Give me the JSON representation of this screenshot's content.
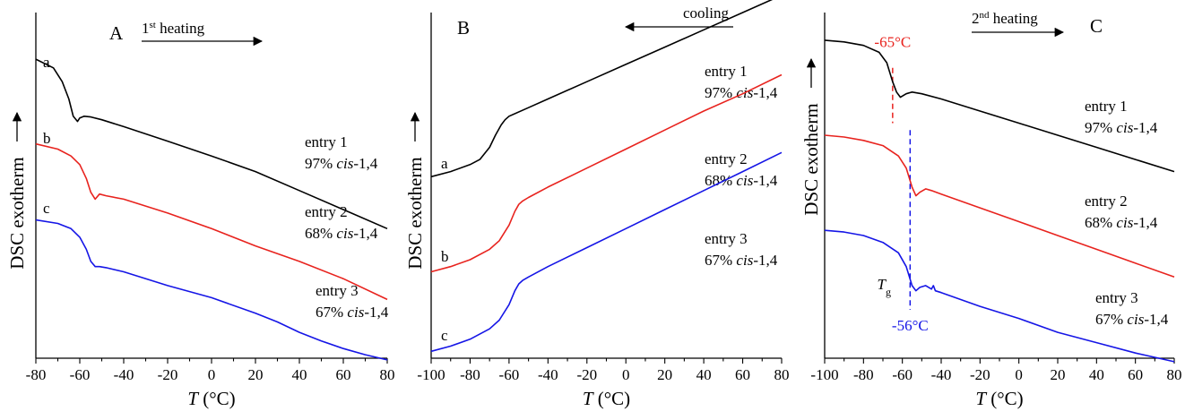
{
  "colors": {
    "entry1": "#000000",
    "entry2": "#e8231e",
    "entry3": "#1515e6",
    "tg_marker_red": "#e8231e",
    "tg_marker_blue": "#1515e6"
  },
  "ylabel": "DSC exotherm",
  "xlabel": {
    "var": "T",
    "unit": " (°C)"
  },
  "chart_data": [
    {
      "type": "line",
      "panel": "A",
      "annotation": {
        "prefix": "1",
        "sup": "st",
        "suffix": " heating",
        "direction": "right"
      },
      "xlim": [
        -80,
        80
      ],
      "xticks": [
        "-80",
        "-60",
        "-40",
        "-20",
        "0",
        "20",
        "40",
        "60",
        "80"
      ],
      "ylim": [
        0,
        100
      ],
      "series": [
        {
          "key": "entry1",
          "letter": "a",
          "name_prefix": "entry 1",
          "content": "97% ",
          "italic": "cis",
          "suffix": "-1,4",
          "x": [
            -80,
            -72,
            -68,
            -65,
            -63,
            -61,
            -60,
            -58,
            -55,
            -50,
            -40,
            -20,
            0,
            20,
            40,
            60,
            80
          ],
          "y": [
            86.5,
            84,
            80,
            75,
            70,
            68.5,
            69.5,
            70,
            69.8,
            69,
            67,
            62.8,
            58.5,
            54,
            48.5,
            43,
            37.5
          ]
        },
        {
          "key": "entry2",
          "letter": "b",
          "name_prefix": "entry 2",
          "content": "68% ",
          "italic": "cis",
          "suffix": "-1,4",
          "x": [
            -80,
            -70,
            -64,
            -60,
            -57,
            -55,
            -53,
            -51,
            -48,
            -40,
            -20,
            0,
            20,
            40,
            60,
            80
          ],
          "y": [
            62,
            60.5,
            58.5,
            56,
            52,
            48,
            46,
            47.5,
            47,
            46,
            42,
            37.5,
            32.5,
            28,
            23,
            17
          ]
        },
        {
          "key": "entry3",
          "letter": "c",
          "name_prefix": "entry 3",
          "content": "67% ",
          "italic": "cis",
          "suffix": "-1,4",
          "x": [
            -80,
            -70,
            -64,
            -60,
            -57,
            -55,
            -53,
            -51,
            -48,
            -40,
            -20,
            0,
            20,
            30,
            40,
            50,
            60,
            70,
            80
          ],
          "y": [
            40,
            39,
            37.5,
            35,
            31.5,
            28,
            26.5,
            26.5,
            26.2,
            25,
            21,
            17.5,
            13,
            10.5,
            7.5,
            5,
            2.8,
            1,
            -0.5
          ]
        }
      ]
    },
    {
      "type": "line",
      "panel": "B",
      "annotation": {
        "prefix": "cooling",
        "sup": "",
        "suffix": "",
        "direction": "left"
      },
      "xlim": [
        -100,
        80
      ],
      "xticks": [
        "-100",
        "-80",
        "-60",
        "-40",
        "-20",
        "0",
        "20",
        "40",
        "60",
        "80"
      ],
      "ylim": [
        0,
        100
      ],
      "series": [
        {
          "key": "entry1",
          "letter": "a",
          "name_prefix": "entry 1",
          "content": "97% ",
          "italic": "cis",
          "suffix": "-1,4",
          "x": [
            -100,
            -90,
            -80,
            -75,
            -70,
            -67,
            -64,
            -62,
            -60,
            -50,
            -40,
            -20,
            0,
            20,
            40,
            60,
            80
          ],
          "y": [
            52.5,
            54,
            56,
            57.5,
            61,
            64.5,
            67.5,
            69,
            70,
            72.5,
            75,
            80,
            85,
            90,
            95,
            100,
            105
          ]
        },
        {
          "key": "entry2",
          "letter": "b",
          "name_prefix": "entry 2",
          "content": "68% ",
          "italic": "cis",
          "suffix": "-1,4",
          "x": [
            -100,
            -90,
            -80,
            -70,
            -65,
            -60,
            -57,
            -55,
            -53,
            -50,
            -40,
            -20,
            0,
            20,
            40,
            60,
            80
          ],
          "y": [
            25,
            26.5,
            28.5,
            31.5,
            34,
            38.5,
            42.5,
            44.5,
            45.5,
            46.5,
            49.5,
            55,
            60.5,
            66,
            71.5,
            76.5,
            82
          ]
        },
        {
          "key": "entry3",
          "letter": "c",
          "name_prefix": "entry 3",
          "content": "67% ",
          "italic": "cis",
          "suffix": "-1,4",
          "x": [
            -100,
            -90,
            -80,
            -70,
            -65,
            -60,
            -57,
            -55,
            -53,
            -50,
            -40,
            -20,
            0,
            20,
            40,
            60,
            80
          ],
          "y": [
            2,
            3.5,
            5.5,
            8.5,
            11,
            15.5,
            19.5,
            21.5,
            22.5,
            23.5,
            26.5,
            32,
            37.5,
            43,
            48.5,
            54,
            59.5
          ]
        }
      ]
    },
    {
      "type": "line",
      "panel": "C",
      "annotation": {
        "prefix": "2",
        "sup": "nd",
        "suffix": " heating",
        "direction": "right"
      },
      "xlim": [
        -100,
        80
      ],
      "xticks": [
        "-100",
        "-80",
        "-60",
        "-40",
        "-20",
        "0",
        "20",
        "40",
        "60",
        "80"
      ],
      "ylim": [
        0,
        100
      ],
      "markers": [
        {
          "label": "-65°C",
          "x": -65,
          "y_top": 84,
          "y_bottom": 68,
          "label_y": 90,
          "color_key": "tg_marker_red"
        },
        {
          "label": "-56°C",
          "x": -56,
          "y_top": 66,
          "y_bottom": 14,
          "label_y": 8,
          "color_key": "tg_marker_blue"
        }
      ],
      "tg": {
        "sym": "T",
        "sub": "g",
        "x": -73,
        "y": 20
      },
      "series": [
        {
          "key": "entry1",
          "letter": "",
          "name_prefix": "entry 1",
          "content": "97% ",
          "italic": "cis",
          "suffix": "-1,4",
          "x": [
            -100,
            -90,
            -80,
            -72,
            -68,
            -65,
            -63,
            -61,
            -58,
            -55,
            -50,
            -40,
            -20,
            0,
            20,
            40,
            60,
            80
          ],
          "y": [
            92,
            91.5,
            90.5,
            88.5,
            85.5,
            80,
            77,
            75.5,
            76.5,
            77,
            76.5,
            75,
            71.5,
            68,
            64.5,
            61,
            57.5,
            54
          ]
        },
        {
          "key": "entry2",
          "letter": "",
          "name_prefix": "entry 2",
          "content": "68% ",
          "italic": "cis",
          "suffix": "-1,4",
          "x": [
            -100,
            -90,
            -80,
            -70,
            -62,
            -58,
            -55,
            -53,
            -51,
            -48,
            -45,
            -40,
            -20,
            0,
            20,
            40,
            60,
            80
          ],
          "y": [
            64.5,
            64,
            63,
            61.5,
            58.5,
            55,
            49.5,
            47,
            48,
            49,
            48.5,
            47.5,
            43.5,
            39.5,
            35.5,
            31.5,
            27.5,
            23.5
          ]
        },
        {
          "key": "entry3",
          "letter": "",
          "name_prefix": "entry 3",
          "content": "67% ",
          "italic": "cis",
          "suffix": "-1,4",
          "x": [
            -100,
            -90,
            -80,
            -70,
            -62,
            -58,
            -55,
            -53,
            -51,
            -48,
            -45,
            -44,
            -43,
            -40,
            -20,
            0,
            20,
            40,
            60,
            80
          ],
          "y": [
            37,
            36.5,
            35.5,
            33.5,
            30.5,
            26.5,
            21,
            19.5,
            20.5,
            21,
            20,
            21,
            19.5,
            19,
            15,
            11.5,
            7.5,
            4.5,
            1.5,
            -1
          ]
        }
      ]
    }
  ]
}
